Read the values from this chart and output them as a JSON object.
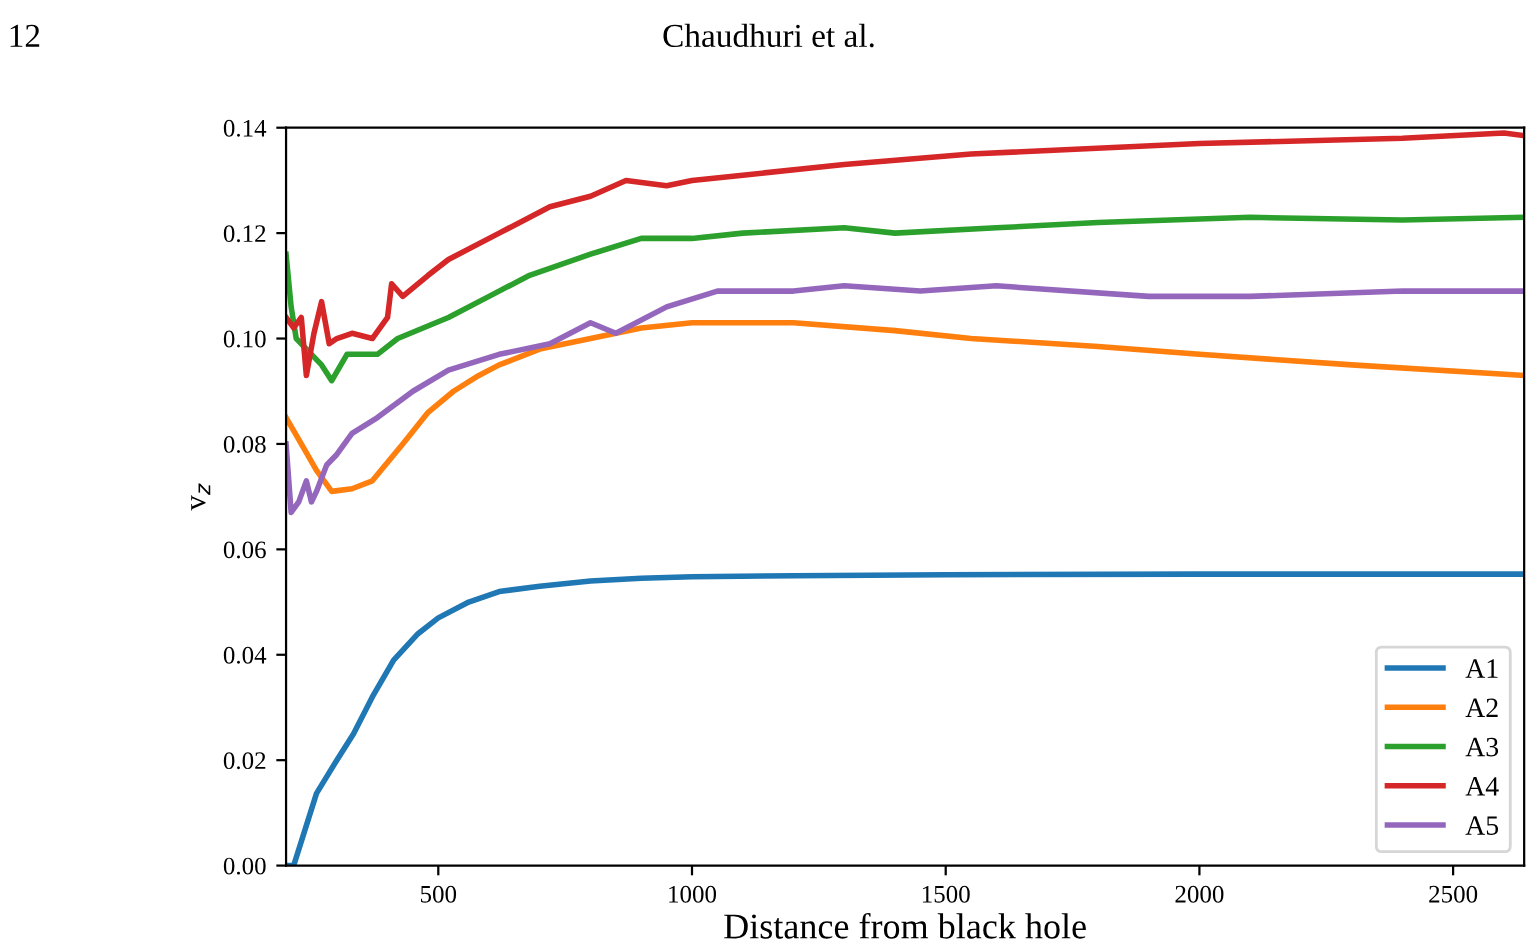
{
  "chart_data": {
    "type": "line",
    "xlabel": "Distance from black hole",
    "ylabel": "v$_{z}$",
    "annotations": [
      "12",
      "Chaudhuri et al."
    ],
    "xlim": [
      200,
      2640
    ],
    "xticks": [
      500,
      1000,
      1500,
      2000,
      2500
    ],
    "ylim": [
      0,
      0.14
    ],
    "yticks": [
      {
        "value": 0,
        "label": "0.00"
      },
      {
        "value": 0.02,
        "label": "0.02"
      },
      {
        "value": 0.04,
        "label": "0.04"
      },
      {
        "value": 0.06,
        "label": "0.06"
      },
      {
        "value": 0.08,
        "label": "0.08"
      },
      {
        "value": 0.1,
        "label": "0.10"
      },
      {
        "value": 0.12,
        "label": "0.12"
      },
      {
        "value": 0.14,
        "label": "0.14"
      }
    ],
    "grid": false,
    "legend": "bottom right",
    "marker": "none",
    "line_style": "solid",
    "series": [
      {
        "name": "A1",
        "color": "#1f77b4",
        "x": [
          200,
          215,
          260,
          300,
          333,
          370,
          412,
          460,
          500,
          560,
          620,
          700,
          800,
          900,
          1000,
          1200,
          1500,
          2000,
          2500,
          2640
        ],
        "values": [
          0,
          0,
          0.0137,
          0.02,
          0.025,
          0.032,
          0.039,
          0.044,
          0.047,
          0.05,
          0.052,
          0.053,
          0.054,
          0.0545,
          0.0548,
          0.055,
          0.0552,
          0.0553,
          0.0553,
          0.0553
        ]
      },
      {
        "name": "A2",
        "color": "#ff7f0e",
        "x": [
          200,
          230,
          260,
          290,
          330,
          370,
          430,
          480,
          530,
          580,
          620,
          700,
          800,
          900,
          1000,
          1200,
          1400,
          1550,
          1800,
          2000,
          2300,
          2640
        ],
        "values": [
          0.085,
          0.08,
          0.075,
          0.071,
          0.0715,
          0.073,
          0.08,
          0.086,
          0.09,
          0.093,
          0.095,
          0.098,
          0.1,
          0.102,
          0.103,
          0.103,
          0.1015,
          0.1,
          0.0985,
          0.097,
          0.095,
          0.093
        ]
      },
      {
        "name": "A3",
        "color": "#2ca02c",
        "x": [
          200,
          210,
          220,
          250,
          270,
          290,
          320,
          380,
          420,
          520,
          600,
          680,
          800,
          900,
          1000,
          1100,
          1300,
          1400,
          1600,
          1800,
          2100,
          2400,
          2640
        ],
        "values": [
          0.116,
          0.106,
          0.1,
          0.097,
          0.095,
          0.092,
          0.097,
          0.097,
          0.1,
          0.104,
          0.108,
          0.112,
          0.116,
          0.119,
          0.119,
          0.12,
          0.121,
          0.12,
          0.121,
          0.122,
          0.123,
          0.1225,
          0.123
        ]
      },
      {
        "name": "A4",
        "color": "#d62728",
        "x": [
          200,
          215,
          230,
          240,
          255,
          270,
          285,
          300,
          330,
          370,
          400,
          408,
          430,
          480,
          520,
          620,
          720,
          800,
          870,
          950,
          1000,
          1100,
          1300,
          1550,
          2000,
          2400,
          2600,
          2640
        ],
        "values": [
          0.104,
          0.102,
          0.104,
          0.093,
          0.101,
          0.107,
          0.099,
          0.1,
          0.101,
          0.1,
          0.104,
          0.1104,
          0.108,
          0.112,
          0.115,
          0.12,
          0.125,
          0.127,
          0.13,
          0.129,
          0.13,
          0.131,
          0.133,
          0.135,
          0.137,
          0.138,
          0.139,
          0.1385
        ]
      },
      {
        "name": "A5",
        "color": "#9467bd",
        "x": [
          200,
          210,
          225,
          240,
          250,
          260,
          280,
          300,
          330,
          380,
          450,
          520,
          620,
          720,
          800,
          850,
          950,
          1050,
          1200,
          1300,
          1450,
          1600,
          1900,
          2100,
          2400,
          2640
        ],
        "values": [
          0.08,
          0.067,
          0.069,
          0.073,
          0.069,
          0.071,
          0.076,
          0.078,
          0.082,
          0.085,
          0.09,
          0.094,
          0.097,
          0.099,
          0.103,
          0.101,
          0.106,
          0.109,
          0.109,
          0.11,
          0.109,
          0.11,
          0.108,
          0.108,
          0.109,
          0.109
        ]
      }
    ]
  }
}
